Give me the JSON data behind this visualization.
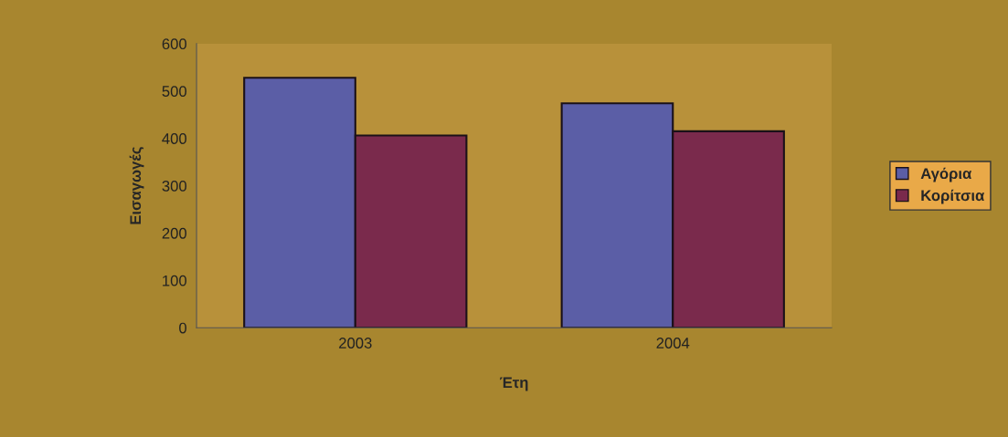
{
  "chart_data": {
    "type": "bar",
    "xlabel": "Έτη",
    "ylabel": "Εισαγωγές",
    "categories": [
      "2003",
      "2004"
    ],
    "series": [
      {
        "name": "Αγόρια",
        "color": "#5b5ea6",
        "values": [
          528,
          474
        ]
      },
      {
        "name": "Κορίτσια",
        "color": "#7a2a4c",
        "values": [
          406,
          415
        ]
      }
    ],
    "ylim": [
      0,
      600
    ],
    "yticks": [
      0,
      100,
      200,
      300,
      400,
      500,
      600
    ],
    "grid": false,
    "legend": "right"
  }
}
